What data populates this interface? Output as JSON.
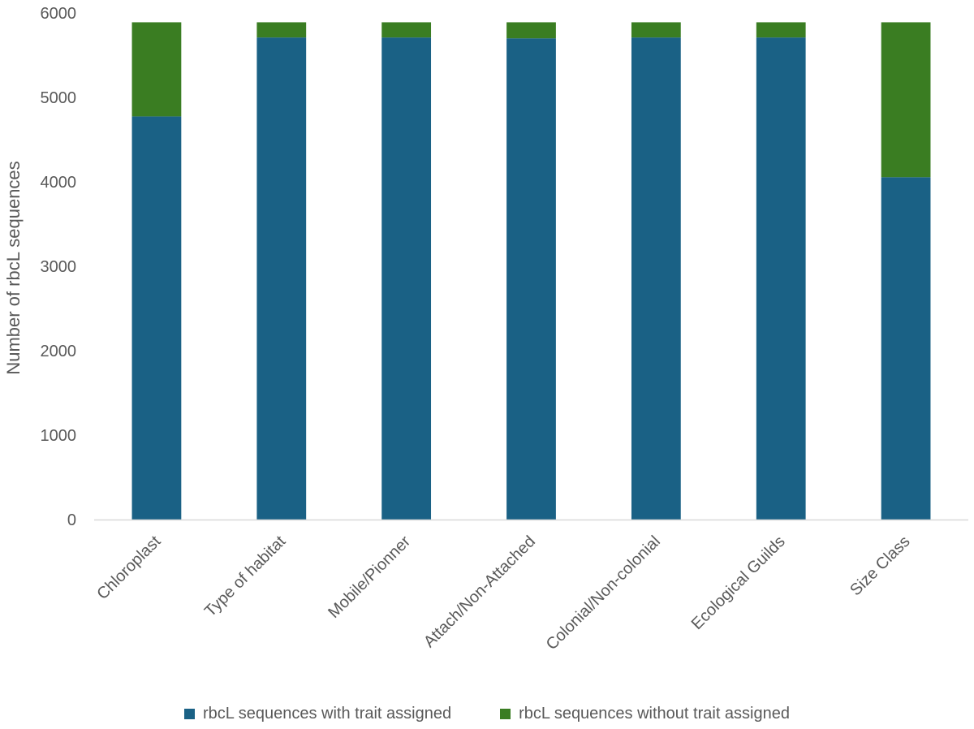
{
  "chart_data": {
    "type": "bar",
    "stacked": true,
    "title": "",
    "xlabel": "",
    "ylabel": "Number of rbcL sequences",
    "ylim": [
      0,
      6000
    ],
    "yticks": [
      0,
      1000,
      2000,
      3000,
      4000,
      5000,
      6000
    ],
    "grid": false,
    "legend_position": "bottom",
    "categories": [
      "Chloroplast",
      "Type of habitat",
      "Mobile/Pionner",
      "Attach/Non-Attached",
      "Colonial/Non-colonial",
      "Ecological Guilds",
      "Size Class"
    ],
    "series": [
      {
        "name": "rbcL sequences with trait assigned",
        "color": "#1a6185",
        "values": [
          4775,
          5710,
          5710,
          5700,
          5710,
          5710,
          4055
        ]
      },
      {
        "name": "rbcL sequences without trait assigned",
        "color": "#3a7d22",
        "values": [
          1115,
          180,
          180,
          190,
          180,
          180,
          1835
        ]
      }
    ]
  }
}
